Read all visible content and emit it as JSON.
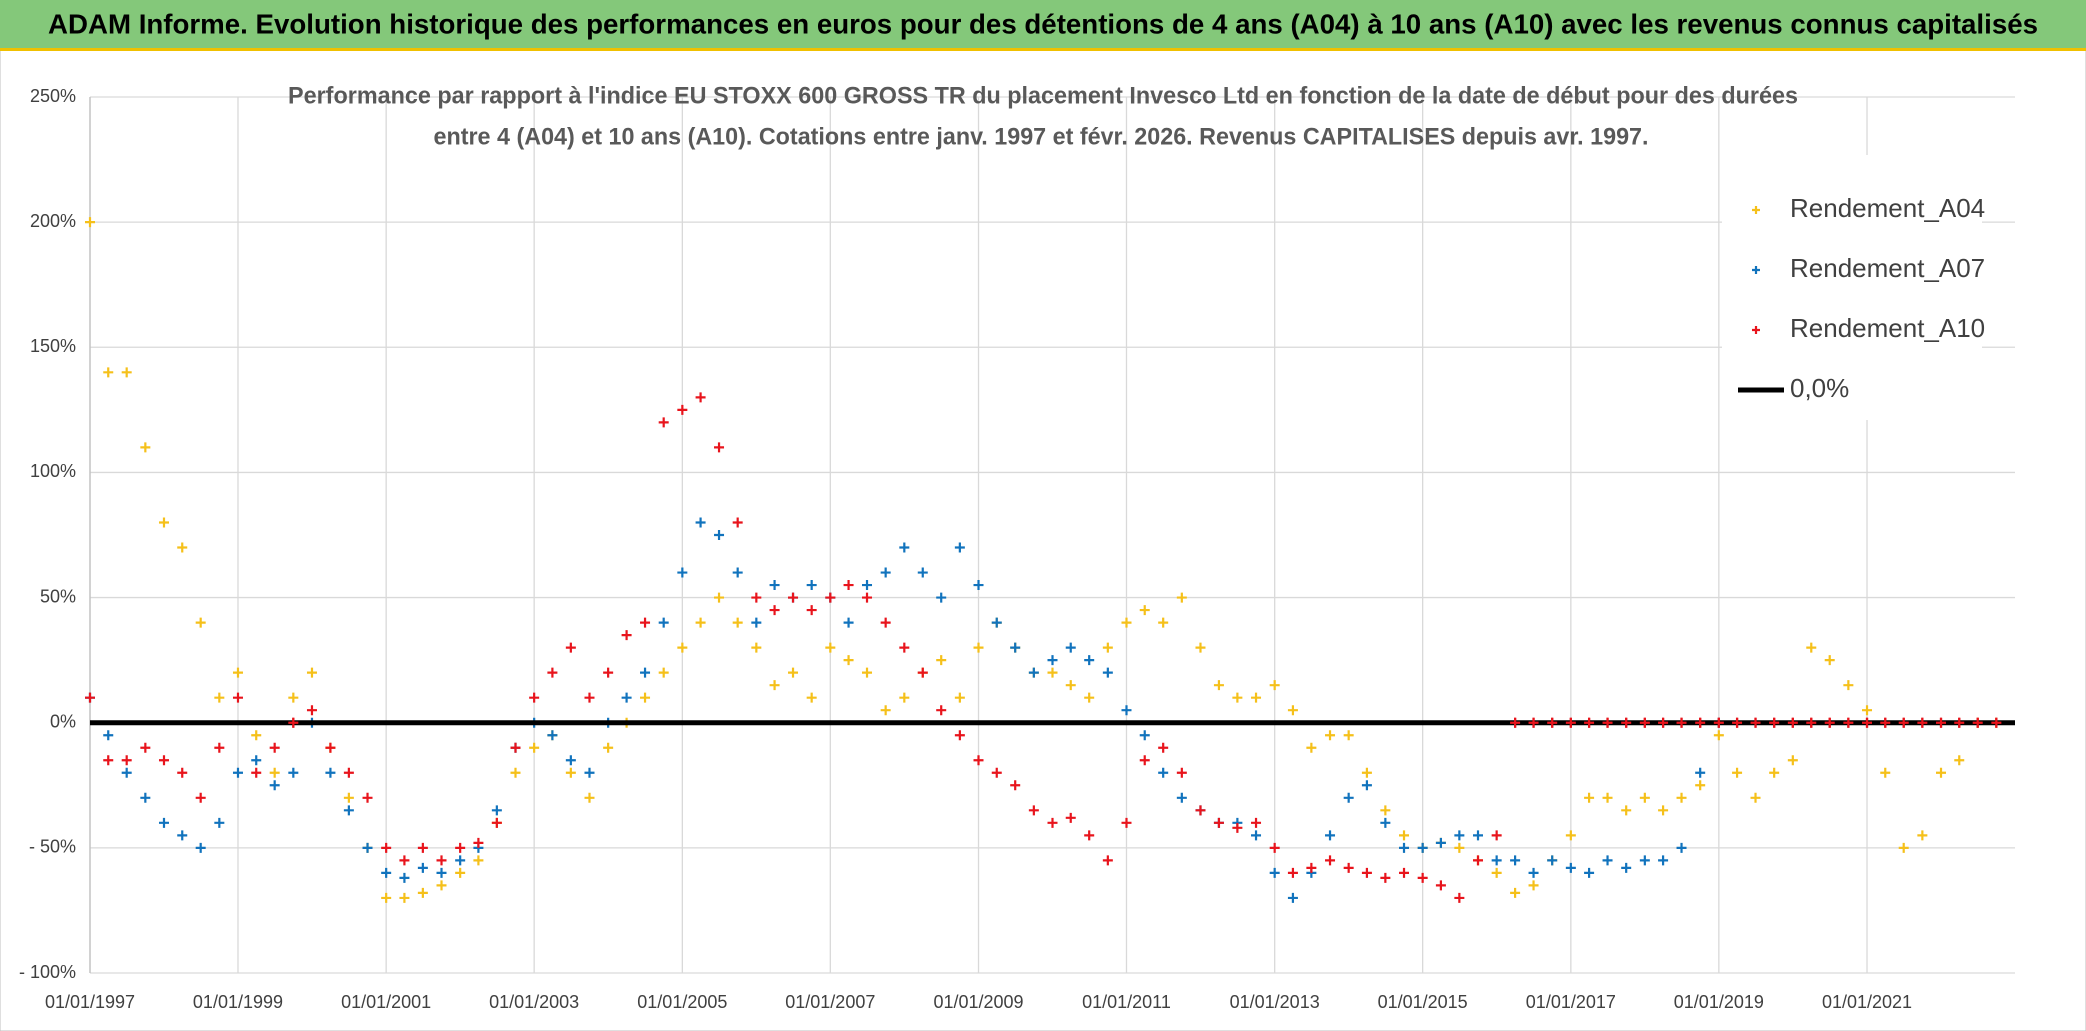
{
  "chart_data": {
    "type": "scatter",
    "title": "ADAM Informe. Evolution historique des performances en euros pour des détentions de 4 ans (A04) à 10 ans (A10) avec les revenus connus capitalisés",
    "subtitle": [
      "Performance par rapport à l'indice EU STOXX 600 GROSS TR  du placement Invesco Ltd en fonction de la date de début pour des durées",
      "entre 4 (A04) et 10 ans (A10). Cotations entre janv. 1997 et févr. 2026. Revenus CAPITALISES depuis avr. 1997."
    ],
    "x": [
      "1997-01-01",
      "1997-04-01",
      "1997-07-01",
      "1997-10-01",
      "1998-01-01",
      "1998-04-01",
      "1998-07-01",
      "1998-10-01",
      "1999-01-01",
      "1999-04-01",
      "1999-07-01",
      "1999-10-01",
      "2000-01-01",
      "2000-04-01",
      "2000-07-01",
      "2000-10-01",
      "2001-01-01",
      "2001-04-01",
      "2001-07-01",
      "2001-10-01",
      "2002-01-01",
      "2002-04-01",
      "2002-07-01",
      "2002-10-01",
      "2003-01-01",
      "2003-04-01",
      "2003-07-01",
      "2003-10-01",
      "2004-01-01",
      "2004-04-01",
      "2004-07-01",
      "2004-10-01",
      "2005-01-01",
      "2005-04-01",
      "2005-07-01",
      "2005-10-01",
      "2006-01-01",
      "2006-04-01",
      "2006-07-01",
      "2006-10-01",
      "2007-01-01",
      "2007-04-01",
      "2007-07-01",
      "2007-10-01",
      "2008-01-01",
      "2008-04-01",
      "2008-07-01",
      "2008-10-01",
      "2009-01-01",
      "2009-04-01",
      "2009-07-01",
      "2009-10-01",
      "2010-01-01",
      "2010-04-01",
      "2010-07-01",
      "2010-10-01",
      "2011-01-01",
      "2011-04-01",
      "2011-07-01",
      "2011-10-01",
      "2012-01-01",
      "2012-04-01",
      "2012-07-01",
      "2012-10-01",
      "2013-01-01",
      "2013-04-01",
      "2013-07-01",
      "2013-10-01",
      "2014-01-01",
      "2014-04-01",
      "2014-07-01",
      "2014-10-01",
      "2015-01-01",
      "2015-04-01",
      "2015-07-01",
      "2015-10-01",
      "2016-01-01",
      "2016-04-01",
      "2016-07-01",
      "2016-10-01",
      "2017-01-01",
      "2017-04-01",
      "2017-07-01",
      "2017-10-01",
      "2018-01-01",
      "2018-04-01",
      "2018-07-01",
      "2018-10-01",
      "2019-01-01",
      "2019-04-01",
      "2019-07-01",
      "2019-10-01",
      "2020-01-01",
      "2020-04-01",
      "2020-07-01",
      "2020-10-01",
      "2021-01-01",
      "2021-04-01",
      "2021-07-01",
      "2021-10-01",
      "2022-01-01",
      "2022-04-01",
      "2022-07-01",
      "2022-10-01"
    ],
    "series": [
      {
        "name": "Rendement_A04",
        "color": "#f5c01a",
        "values": [
          200,
          140,
          140,
          110,
          80,
          70,
          40,
          10,
          20,
          -5,
          -20,
          10,
          20,
          -10,
          -30,
          -50,
          -70,
          -70,
          -68,
          -65,
          -60,
          -55,
          -40,
          -20,
          -10,
          -5,
          -20,
          -30,
          -10,
          0,
          10,
          20,
          30,
          40,
          50,
          40,
          30,
          15,
          20,
          10,
          30,
          25,
          20,
          5,
          10,
          20,
          25,
          10,
          30,
          40,
          30,
          20,
          20,
          15,
          10,
          30,
          40,
          45,
          40,
          50,
          30,
          15,
          10,
          10,
          15,
          5,
          -10,
          -5,
          -5,
          -20,
          -35,
          -45,
          -50,
          -48,
          -50,
          -55,
          -60,
          -68,
          -65,
          -55,
          -45,
          -30,
          -30,
          -35,
          -30,
          -35,
          -30,
          -25,
          -5,
          -20,
          -30,
          -20,
          -15,
          30,
          25,
          15,
          5,
          -20,
          -50,
          -45,
          -20,
          -15,
          0,
          0
        ]
      },
      {
        "name": "Rendement_A07",
        "color": "#1173bd",
        "values": [
          10,
          -5,
          -20,
          -30,
          -40,
          -45,
          -50,
          -40,
          -20,
          -15,
          -25,
          -20,
          0,
          -20,
          -35,
          -50,
          -60,
          -62,
          -58,
          -60,
          -55,
          -50,
          -35,
          -10,
          0,
          -5,
          -15,
          -20,
          0,
          10,
          20,
          40,
          60,
          80,
          75,
          60,
          40,
          55,
          50,
          55,
          50,
          40,
          55,
          60,
          70,
          60,
          50,
          70,
          55,
          40,
          30,
          20,
          25,
          30,
          25,
          20,
          5,
          -5,
          -20,
          -30,
          -35,
          -40,
          -40,
          -45,
          -60,
          -70,
          -60,
          -45,
          -30,
          -25,
          -40,
          -50,
          -50,
          -48,
          -45,
          -45,
          -55,
          -55,
          -60,
          -55,
          -58,
          -60,
          -55,
          -58,
          -55,
          -55,
          -50,
          -20,
          0,
          null,
          null,
          null,
          null,
          null,
          null,
          null,
          null,
          null,
          null,
          null,
          null,
          null,
          null,
          null
        ]
      },
      {
        "name": "Rendement_A10",
        "color": "#e8141c",
        "values": [
          10,
          -15,
          -15,
          -10,
          -15,
          -20,
          -30,
          -10,
          10,
          -20,
          -10,
          0,
          5,
          -10,
          -20,
          -30,
          -50,
          -55,
          -50,
          -55,
          -50,
          -48,
          -40,
          -10,
          10,
          20,
          30,
          10,
          20,
          35,
          40,
          120,
          125,
          130,
          110,
          80,
          50,
          45,
          50,
          45,
          50,
          55,
          50,
          40,
          30,
          20,
          5,
          -5,
          -15,
          -20,
          -25,
          -35,
          -40,
          -38,
          -45,
          -55,
          -40,
          -15,
          -10,
          -20,
          -35,
          -40,
          -42,
          -40,
          -50,
          -60,
          -58,
          -55,
          -58,
          -60,
          -62,
          -60,
          -62,
          -65,
          -70,
          -55,
          -45,
          0,
          0,
          0,
          0,
          0,
          0,
          0,
          0,
          0,
          0,
          0,
          0,
          0,
          0,
          0,
          0,
          0,
          0,
          0,
          0,
          0,
          0,
          0,
          0,
          0,
          0,
          0
        ]
      }
    ],
    "reference_line": {
      "name": "0,0%",
      "value": 0,
      "color": "#000000"
    },
    "xlim": [
      "1997-01-01",
      "2023-01-01"
    ],
    "xticks": [
      {
        "value": "1997-01-01",
        "label": "01/01/1997"
      },
      {
        "value": "1999-01-01",
        "label": "01/01/1999"
      },
      {
        "value": "2001-01-01",
        "label": "01/01/2001"
      },
      {
        "value": "2003-01-01",
        "label": "01/01/2003"
      },
      {
        "value": "2005-01-01",
        "label": "01/01/2005"
      },
      {
        "value": "2007-01-01",
        "label": "01/01/2007"
      },
      {
        "value": "2009-01-01",
        "label": "01/01/2009"
      },
      {
        "value": "2011-01-01",
        "label": "01/01/2011"
      },
      {
        "value": "2013-01-01",
        "label": "01/01/2013"
      },
      {
        "value": "2015-01-01",
        "label": "01/01/2015"
      },
      {
        "value": "2017-01-01",
        "label": "01/01/2017"
      },
      {
        "value": "2019-01-01",
        "label": "01/01/2019"
      },
      {
        "value": "2021-01-01",
        "label": "01/01/2021"
      }
    ],
    "ylim": [
      -100,
      250
    ],
    "yticks": [
      {
        "value": -100,
        "label": "- 100%"
      },
      {
        "value": -50,
        "label": "- 50%"
      },
      {
        "value": 0,
        "label": "0%"
      },
      {
        "value": 50,
        "label": "50%"
      },
      {
        "value": 100,
        "label": "100%"
      },
      {
        "value": 150,
        "label": "150%"
      },
      {
        "value": 200,
        "label": "200%"
      },
      {
        "value": 250,
        "label": "250%"
      }
    ],
    "grid": true,
    "legend": "top-right"
  }
}
